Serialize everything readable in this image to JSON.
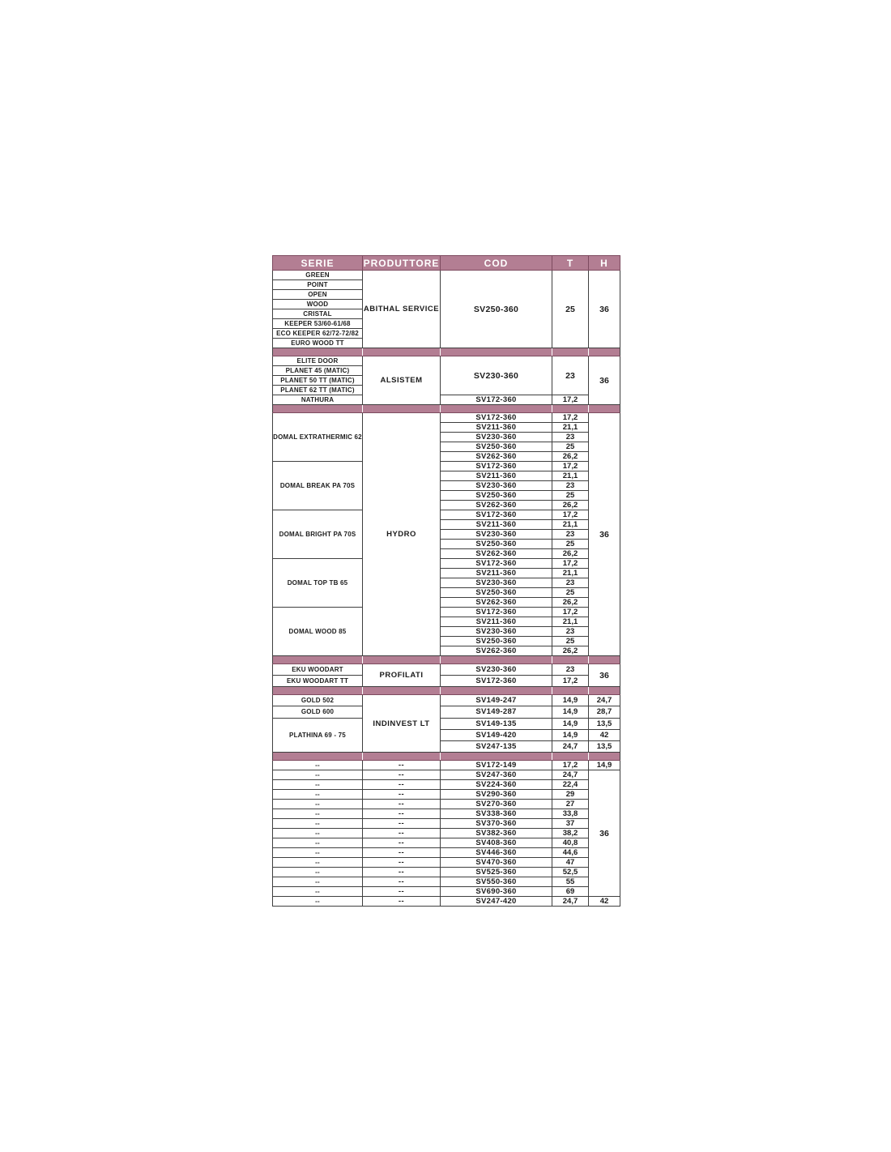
{
  "table": {
    "colors": {
      "accent": "#b37e93",
      "accent_border": "#7d4b5f",
      "grid_border": "#3f3f3f",
      "header_text": "#ffffff",
      "cell_text": "#1c1c1c"
    },
    "columns": [
      {
        "key": "serie",
        "label": "SERIE"
      },
      {
        "key": "produttore",
        "label": "PRODUTTORE"
      },
      {
        "key": "cod",
        "label": "COD"
      },
      {
        "key": "t",
        "label": "T"
      },
      {
        "key": "h",
        "label": "H"
      }
    ],
    "sections": [
      {
        "produttore": [
          {
            "label": "ABITHAL SERVICE",
            "rows": 8
          }
        ],
        "serie": [
          {
            "label": "GREEN",
            "rows": 1
          },
          {
            "label": "POINT",
            "rows": 1
          },
          {
            "label": "OPEN",
            "rows": 1
          },
          {
            "label": "WOOD",
            "rows": 1
          },
          {
            "label": "CRISTAL",
            "rows": 1
          },
          {
            "label": "KEEPER 53/60-61/68",
            "rows": 1
          },
          {
            "label": "ECO KEEPER 62/72-72/82",
            "rows": 1
          },
          {
            "label": "EURO WOOD TT",
            "rows": 1
          }
        ],
        "cods": [
          {
            "cod": "SV250-360",
            "t": "25",
            "rows": 8
          }
        ],
        "h": [
          {
            "value": "36",
            "rows": 8
          }
        ]
      },
      {
        "produttore": [
          {
            "label": "ALSISTEM",
            "rows": 5
          }
        ],
        "serie": [
          {
            "label": "ELITE DOOR",
            "rows": 1
          },
          {
            "label": "PLANET 45 (MATIC)",
            "rows": 1
          },
          {
            "label": "PLANET 50 TT (MATIC)",
            "rows": 1
          },
          {
            "label": "PLANET 62 TT (MATIC)",
            "rows": 1
          },
          {
            "label": "NATHURA",
            "rows": 1
          }
        ],
        "cods": [
          {
            "cod": "SV230-360",
            "t": "23",
            "rows": 4
          },
          {
            "cod": "SV172-360",
            "t": "17,2",
            "rows": 1
          }
        ],
        "h": [
          {
            "value": "36",
            "rows": 5
          }
        ]
      },
      {
        "produttore": [
          {
            "label": "HYDRO",
            "rows": 25
          }
        ],
        "serie": [
          {
            "label": "DOMAL EXTRATHERMIC 62",
            "rows": 5
          },
          {
            "label": "DOMAL BREAK PA 70S",
            "rows": 5
          },
          {
            "label": "DOMAL BRIGHT PA 70S",
            "rows": 5
          },
          {
            "label": "DOMAL TOP TB 65",
            "rows": 5
          },
          {
            "label": "DOMAL WOOD 85",
            "rows": 5
          }
        ],
        "cods": [
          {
            "cod": "SV172-360",
            "t": "17,2",
            "rows": 1
          },
          {
            "cod": "SV211-360",
            "t": "21,1",
            "rows": 1
          },
          {
            "cod": "SV230-360",
            "t": "23",
            "rows": 1
          },
          {
            "cod": "SV250-360",
            "t": "25",
            "rows": 1
          },
          {
            "cod": "SV262-360",
            "t": "26,2",
            "rows": 1
          },
          {
            "cod": "SV172-360",
            "t": "17,2",
            "rows": 1
          },
          {
            "cod": "SV211-360",
            "t": "21,1",
            "rows": 1
          },
          {
            "cod": "SV230-360",
            "t": "23",
            "rows": 1
          },
          {
            "cod": "SV250-360",
            "t": "25",
            "rows": 1
          },
          {
            "cod": "SV262-360",
            "t": "26,2",
            "rows": 1
          },
          {
            "cod": "SV172-360",
            "t": "17,2",
            "rows": 1
          },
          {
            "cod": "SV211-360",
            "t": "21,1",
            "rows": 1
          },
          {
            "cod": "SV230-360",
            "t": "23",
            "rows": 1
          },
          {
            "cod": "SV250-360",
            "t": "25",
            "rows": 1
          },
          {
            "cod": "SV262-360",
            "t": "26,2",
            "rows": 1
          },
          {
            "cod": "SV172-360",
            "t": "17,2",
            "rows": 1
          },
          {
            "cod": "SV211-360",
            "t": "21,1",
            "rows": 1
          },
          {
            "cod": "SV230-360",
            "t": "23",
            "rows": 1
          },
          {
            "cod": "SV250-360",
            "t": "25",
            "rows": 1
          },
          {
            "cod": "SV262-360",
            "t": "26,2",
            "rows": 1
          },
          {
            "cod": "SV172-360",
            "t": "17,2",
            "rows": 1
          },
          {
            "cod": "SV211-360",
            "t": "21,1",
            "rows": 1
          },
          {
            "cod": "SV230-360",
            "t": "23",
            "rows": 1
          },
          {
            "cod": "SV250-360",
            "t": "25",
            "rows": 1
          },
          {
            "cod": "SV262-360",
            "t": "26,2",
            "rows": 1
          }
        ],
        "h": [
          {
            "value": "36",
            "rows": 25
          }
        ]
      },
      {
        "produttore": [
          {
            "label": "PROFILATI",
            "rows": 2
          }
        ],
        "serie": [
          {
            "label": "EKU WOODART",
            "rows": 1
          },
          {
            "label": "EKU WOODART TT",
            "rows": 1
          }
        ],
        "cods": [
          {
            "cod": "SV230-360",
            "t": "23",
            "rows": 1
          },
          {
            "cod": "SV172-360",
            "t": "17,2",
            "rows": 1
          }
        ],
        "h": [
          {
            "value": "36",
            "rows": 2
          }
        ]
      },
      {
        "produttore": [
          {
            "label": "INDINVEST LT",
            "rows": 5
          }
        ],
        "serie": [
          {
            "label": "GOLD 502",
            "rows": 1
          },
          {
            "label": "GOLD 600",
            "rows": 1
          },
          {
            "label": "PLATHINA 69 - 75",
            "rows": 3
          }
        ],
        "cods": [
          {
            "cod": "SV149-247",
            "t": "14,9",
            "rows": 1
          },
          {
            "cod": "SV149-287",
            "t": "14,9",
            "rows": 1
          },
          {
            "cod": "SV149-135",
            "t": "14,9",
            "rows": 1
          },
          {
            "cod": "SV149-420",
            "t": "14,9",
            "rows": 1
          },
          {
            "cod": "SV247-135",
            "t": "24,7",
            "rows": 1
          }
        ],
        "h": [
          {
            "value": "24,7",
            "rows": 1
          },
          {
            "value": "28,7",
            "rows": 1
          },
          {
            "value": "13,5",
            "rows": 1
          },
          {
            "value": "42",
            "rows": 1
          },
          {
            "value": "13,5",
            "rows": 1
          }
        ]
      },
      {
        "produttore": [
          {
            "label": "--",
            "rows": 1
          },
          {
            "label": "--",
            "rows": 1
          },
          {
            "label": "--",
            "rows": 1
          },
          {
            "label": "--",
            "rows": 1
          },
          {
            "label": "--",
            "rows": 1
          },
          {
            "label": "--",
            "rows": 1
          },
          {
            "label": "--",
            "rows": 1
          },
          {
            "label": "--",
            "rows": 1
          },
          {
            "label": "--",
            "rows": 1
          },
          {
            "label": "--",
            "rows": 1
          },
          {
            "label": "--",
            "rows": 1
          },
          {
            "label": "--",
            "rows": 1
          },
          {
            "label": "--",
            "rows": 1
          },
          {
            "label": "--",
            "rows": 1
          },
          {
            "label": "--",
            "rows": 1
          }
        ],
        "serie": [
          {
            "label": "--",
            "rows": 1
          },
          {
            "label": "--",
            "rows": 1
          },
          {
            "label": "--",
            "rows": 1
          },
          {
            "label": "--",
            "rows": 1
          },
          {
            "label": "--",
            "rows": 1
          },
          {
            "label": "--",
            "rows": 1
          },
          {
            "label": "--",
            "rows": 1
          },
          {
            "label": "--",
            "rows": 1
          },
          {
            "label": "--",
            "rows": 1
          },
          {
            "label": "--",
            "rows": 1
          },
          {
            "label": "--",
            "rows": 1
          },
          {
            "label": "--",
            "rows": 1
          },
          {
            "label": "--",
            "rows": 1
          },
          {
            "label": "--",
            "rows": 1
          },
          {
            "label": "--",
            "rows": 1
          }
        ],
        "cods": [
          {
            "cod": "SV172-149",
            "t": "17,2",
            "rows": 1
          },
          {
            "cod": "SV247-360",
            "t": "24,7",
            "rows": 1
          },
          {
            "cod": "SV224-360",
            "t": "22,4",
            "rows": 1
          },
          {
            "cod": "SV290-360",
            "t": "29",
            "rows": 1
          },
          {
            "cod": "SV270-360",
            "t": "27",
            "rows": 1
          },
          {
            "cod": "SV338-360",
            "t": "33,8",
            "rows": 1
          },
          {
            "cod": "SV370-360",
            "t": "37",
            "rows": 1
          },
          {
            "cod": "SV382-360",
            "t": "38,2",
            "rows": 1
          },
          {
            "cod": "SV408-360",
            "t": "40,8",
            "rows": 1
          },
          {
            "cod": "SV446-360",
            "t": "44,6",
            "rows": 1
          },
          {
            "cod": "SV470-360",
            "t": "47",
            "rows": 1
          },
          {
            "cod": "SV525-360",
            "t": "52,5",
            "rows": 1
          },
          {
            "cod": "SV550-360",
            "t": "55",
            "rows": 1
          },
          {
            "cod": "SV690-360",
            "t": "69",
            "rows": 1
          },
          {
            "cod": "SV247-420",
            "t": "24,7",
            "rows": 1
          }
        ],
        "h": [
          {
            "value": "14,9",
            "rows": 1
          },
          {
            "value": "36",
            "rows": 13
          },
          {
            "value": "42",
            "rows": 1
          }
        ]
      }
    ]
  }
}
